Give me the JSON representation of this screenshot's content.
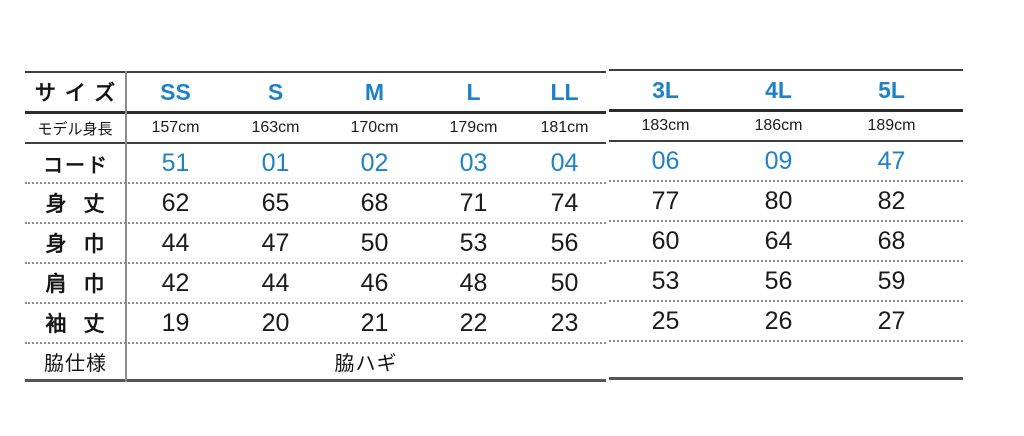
{
  "colors": {
    "accent_blue": "#1e82c8",
    "text_dark": "#1b1b1b",
    "line_dark": "#2c2c2c",
    "line_gray": "#8c8c8c"
  },
  "table": {
    "row_labels": {
      "size": "サイズ",
      "model_height": "モデル身長",
      "code": "コード",
      "body_length": "身丈",
      "body_width": "身巾",
      "shoulder_width": "肩巾",
      "sleeve_length": "袖丈",
      "side_spec": "脇仕様"
    },
    "side_spec_value": "脇ハギ",
    "columns": [
      {
        "size": "SS",
        "model_height": "157cm",
        "code": "51",
        "body_length": "62",
        "body_width": "44",
        "shoulder_width": "42",
        "sleeve_length": "19"
      },
      {
        "size": "S",
        "model_height": "163cm",
        "code": "01",
        "body_length": "65",
        "body_width": "47",
        "shoulder_width": "44",
        "sleeve_length": "20"
      },
      {
        "size": "M",
        "model_height": "170cm",
        "code": "02",
        "body_length": "68",
        "body_width": "50",
        "shoulder_width": "46",
        "sleeve_length": "21"
      },
      {
        "size": "L",
        "model_height": "179cm",
        "code": "03",
        "body_length": "71",
        "body_width": "53",
        "shoulder_width": "48",
        "sleeve_length": "22"
      },
      {
        "size": "LL",
        "model_height": "181cm",
        "code": "04",
        "body_length": "74",
        "body_width": "56",
        "shoulder_width": "50",
        "sleeve_length": "23"
      },
      {
        "size": "3L",
        "model_height": "183cm",
        "code": "06",
        "body_length": "77",
        "body_width": "60",
        "shoulder_width": "53",
        "sleeve_length": "25"
      },
      {
        "size": "4L",
        "model_height": "186cm",
        "code": "09",
        "body_length": "80",
        "body_width": "64",
        "shoulder_width": "56",
        "sleeve_length": "26"
      },
      {
        "size": "5L",
        "model_height": "189cm",
        "code": "47",
        "body_length": "82",
        "body_width": "68",
        "shoulder_width": "59",
        "sleeve_length": "27"
      }
    ]
  },
  "chart_data": {
    "type": "table",
    "column_headers": [
      "SS",
      "S",
      "M",
      "L",
      "LL",
      "3L",
      "4L",
      "5L"
    ],
    "row_headers": [
      "サイズ",
      "モデル身長",
      "コード",
      "身丈",
      "身巾",
      "肩巾",
      "袖丈",
      "脇仕様"
    ],
    "rows": {
      "モデル身長": [
        "157cm",
        "163cm",
        "170cm",
        "179cm",
        "181cm",
        "183cm",
        "186cm",
        "189cm"
      ],
      "コード": [
        "51",
        "01",
        "02",
        "03",
        "04",
        "06",
        "09",
        "47"
      ],
      "身丈": [
        62,
        65,
        68,
        71,
        74,
        77,
        80,
        82
      ],
      "身巾": [
        44,
        47,
        50,
        53,
        56,
        60,
        64,
        68
      ],
      "肩巾": [
        42,
        44,
        46,
        48,
        50,
        53,
        56,
        59
      ],
      "袖丈": [
        19,
        20,
        21,
        22,
        23,
        25,
        26,
        27
      ],
      "脇仕様": [
        "脇ハギ (SS–LL列に跨る)"
      ]
    }
  }
}
